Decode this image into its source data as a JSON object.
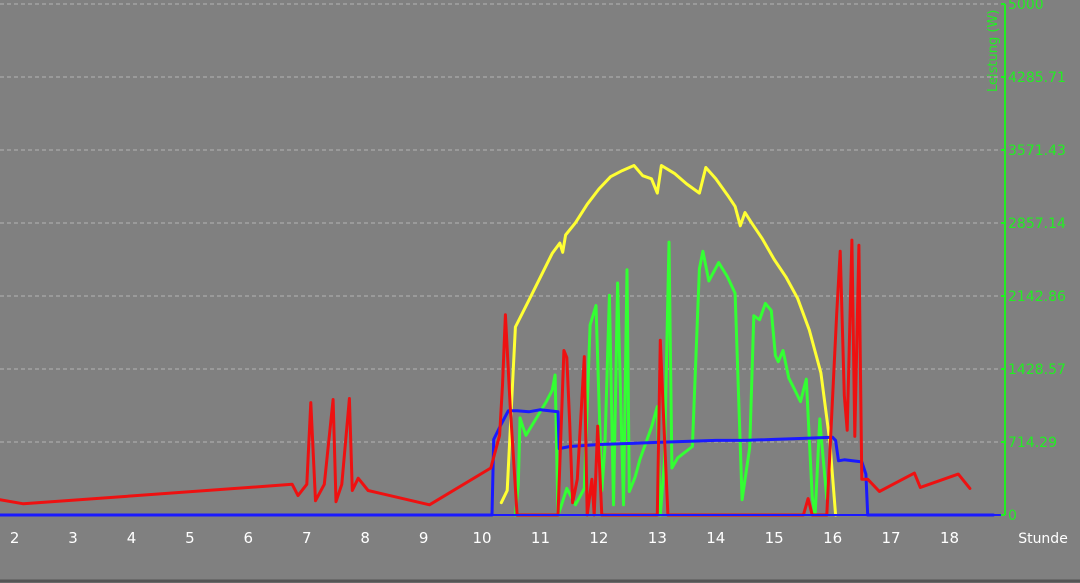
{
  "chart_data": {
    "type": "line",
    "title": "",
    "xlabel": "Stunde",
    "ylabel": "Leistung (W)",
    "xlim": [
      1.75,
      18.95
    ],
    "ylim": [
      0,
      5000
    ],
    "grid": true,
    "axis_color": "#22ee22",
    "x_ticks": [
      "2",
      "3",
      "4",
      "5",
      "6",
      "7",
      "8",
      "9",
      "10",
      "11",
      "12",
      "13",
      "14",
      "15",
      "16",
      "17",
      "18"
    ],
    "y_ticks": [
      "0",
      "714.29",
      "1428.57",
      "2142.86",
      "2857.14",
      "3571.43",
      "4285.71",
      "5000"
    ],
    "series": [
      {
        "color": "#ffff33",
        "x": [
          10.33,
          10.43,
          10.57,
          10.8,
          11.0,
          11.2,
          11.33,
          11.38,
          11.43,
          11.6,
          11.8,
          12.0,
          12.2,
          12.4,
          12.6,
          12.75,
          12.9,
          13.0,
          13.07,
          13.3,
          13.5,
          13.72,
          13.83,
          14.0,
          14.2,
          14.33,
          14.42,
          14.5,
          14.6,
          14.8,
          15.0,
          15.2,
          15.4,
          15.6,
          15.8,
          15.95,
          16.05
        ],
        "y": [
          120,
          240,
          1840,
          2100,
          2330,
          2560,
          2660,
          2570,
          2740,
          2860,
          3040,
          3190,
          3310,
          3370,
          3420,
          3320,
          3290,
          3150,
          3420,
          3340,
          3240,
          3150,
          3400,
          3290,
          3130,
          3020,
          2830,
          2960,
          2870,
          2700,
          2500,
          2330,
          2120,
          1810,
          1390,
          730,
          0
        ]
      },
      {
        "color": "#33ff33",
        "x": [
          10.57,
          10.62,
          10.65,
          10.7,
          10.75,
          10.9,
          11.1,
          11.2,
          11.25,
          11.3,
          11.35,
          11.45,
          11.6,
          11.75,
          11.85,
          11.95,
          12.05,
          12.1,
          12.18,
          12.25,
          12.32,
          12.42,
          12.48,
          12.52,
          12.62,
          12.7,
          12.9,
          13.0,
          13.05,
          13.12,
          13.2,
          13.25,
          13.35,
          13.6,
          13.72,
          13.78,
          13.88,
          14.05,
          14.2,
          14.33,
          14.45,
          14.58,
          14.65,
          14.75,
          14.85,
          14.95,
          15.02,
          15.07,
          15.15,
          15.25,
          15.33,
          15.45,
          15.55,
          15.65,
          15.7,
          15.78,
          15.8,
          15.9
        ],
        "y": [
          0,
          300,
          950,
          860,
          780,
          920,
          1110,
          1220,
          1370,
          0,
          80,
          260,
          100,
          260,
          1860,
          2050,
          240,
          640,
          2150,
          100,
          2270,
          100,
          2400,
          230,
          370,
          540,
          860,
          1060,
          0,
          520,
          2670,
          460,
          560,
          670,
          2410,
          2580,
          2290,
          2470,
          2330,
          2170,
          150,
          660,
          1950,
          1910,
          2070,
          2000,
          1560,
          1500,
          1610,
          1340,
          1250,
          1110,
          1330,
          180,
          0,
          940,
          800,
          160
        ]
      },
      {
        "color": "#1a1aff",
        "x": [
          1.75,
          4,
          6,
          8,
          10,
          10.17,
          10.2,
          10.33,
          10.45,
          10.6,
          10.8,
          11.0,
          11.15,
          11.3,
          11.32,
          11.5,
          12.0,
          12.5,
          13.0,
          13.5,
          14.0,
          14.5,
          15.0,
          15.5,
          16.0,
          16.05,
          16.1,
          16.2,
          16.5,
          16.57,
          16.6,
          17.0,
          18.0,
          18.75
        ],
        "y": [
          0,
          0,
          0,
          0,
          0,
          0,
          740,
          890,
          1020,
          1020,
          1010,
          1030,
          1020,
          1010,
          650,
          670,
          690,
          700,
          710,
          720,
          730,
          730,
          740,
          750,
          760,
          730,
          530,
          540,
          520,
          400,
          0,
          0,
          0,
          0
        ]
      },
      {
        "color": "#ee1111",
        "x": [
          1.75,
          2.15,
          6.75,
          6.85,
          7.0,
          7.07,
          7.15,
          7.3,
          7.45,
          7.5,
          7.6,
          7.73,
          7.78,
          7.88,
          8.05,
          9.1,
          10.15,
          10.3,
          10.35,
          10.4,
          10.48,
          10.6,
          11.3,
          11.4,
          11.45,
          11.5,
          11.55,
          11.63,
          11.75,
          11.8,
          11.88,
          11.92,
          11.98,
          12.05,
          12.12,
          12.18,
          12.6,
          13.0,
          13.05,
          13.1,
          13.18,
          14.0,
          15.0,
          15.5,
          15.58,
          15.65,
          15.9,
          16.07,
          16.13,
          16.2,
          16.25,
          16.33,
          16.38,
          16.45,
          16.5,
          16.6,
          16.8,
          17.4,
          17.5,
          18.15,
          18.35
        ],
        "y": [
          150,
          110,
          300,
          190,
          300,
          1100,
          140,
          300,
          1130,
          130,
          300,
          1140,
          240,
          360,
          240,
          100,
          460,
          780,
          1270,
          1960,
          1080,
          0,
          0,
          1610,
          1540,
          900,
          120,
          350,
          1550,
          0,
          350,
          0,
          870,
          0,
          0,
          0,
          0,
          0,
          1710,
          1040,
          0,
          0,
          0,
          0,
          160,
          0,
          0,
          1970,
          2580,
          1170,
          830,
          2690,
          770,
          2640,
          350,
          350,
          230,
          410,
          270,
          400,
          260
        ]
      }
    ]
  }
}
